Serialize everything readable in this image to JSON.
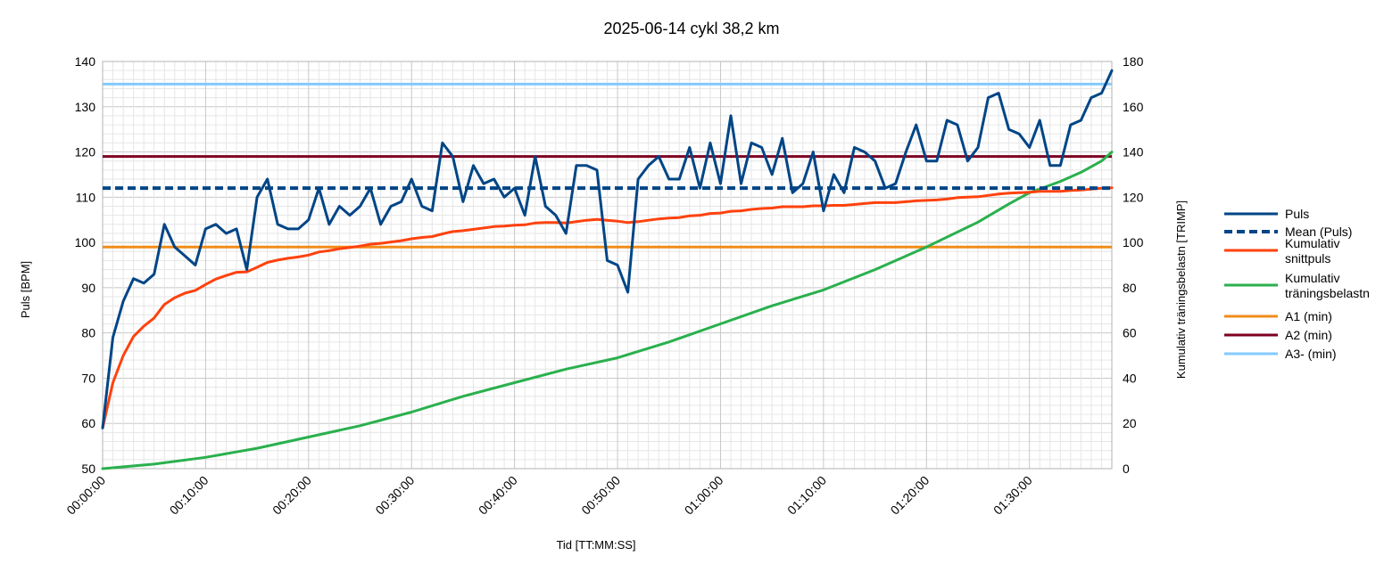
{
  "chart_data": {
    "type": "line",
    "title": "2025-06-14 cykl 38,2 km",
    "xlabel": "Tid [TT:MM:SS]",
    "ylabel": "Puls [BPM]",
    "y2label": "Kumulativ träningsbelastn [TRIMP]",
    "xlim_minutes": [
      0,
      98
    ],
    "ylim": [
      50,
      140
    ],
    "y2lim": [
      0,
      180
    ],
    "x_ticks": [
      "00:00:00",
      "00:10:00",
      "00:20:00",
      "00:30:00",
      "00:40:00",
      "00:50:00",
      "01:00:00",
      "01:10:00",
      "01:20:00",
      "01:30:00"
    ],
    "y_ticks": [
      "50",
      "60",
      "70",
      "80",
      "90",
      "100",
      "110",
      "120",
      "130",
      "140"
    ],
    "y2_ticks": [
      "0",
      "20",
      "40",
      "60",
      "80",
      "100",
      "120",
      "140",
      "160",
      "180"
    ],
    "grid": true,
    "legend_position": "right",
    "colors": {
      "puls": "#004586",
      "mean": "#004586",
      "kumulativ_snittpuls": "#ff420e",
      "kumulativ_traning": "#2ab04d",
      "a1": "#f08c1a",
      "a2": "#7e0021",
      "a3": "#83caff",
      "grid_major": "#c8c8c8",
      "grid_minor": "#e6e6e6"
    },
    "series": [
      {
        "name": "Puls",
        "axis": "left",
        "x": [
          0,
          1,
          2,
          3,
          4,
          5,
          6,
          7,
          8,
          9,
          10,
          11,
          12,
          13,
          14,
          15,
          16,
          17,
          18,
          19,
          20,
          21,
          22,
          23,
          24,
          25,
          26,
          27,
          28,
          29,
          30,
          31,
          32,
          33,
          34,
          35,
          36,
          37,
          38,
          39,
          40,
          41,
          42,
          43,
          44,
          45,
          46,
          47,
          48,
          49,
          50,
          51,
          52,
          53,
          54,
          55,
          56,
          57,
          58,
          59,
          60,
          61,
          62,
          63,
          64,
          65,
          66,
          67,
          68,
          69,
          70,
          71,
          72,
          73,
          74,
          75,
          76,
          77,
          78,
          79,
          80,
          81,
          82,
          83,
          84,
          85,
          86,
          87,
          88,
          89,
          90,
          91,
          92,
          93,
          94,
          95,
          96,
          97,
          98
        ],
        "values": [
          59,
          79,
          87,
          92,
          91,
          93,
          104,
          99,
          97,
          95,
          103,
          104,
          102,
          103,
          94,
          110,
          114,
          104,
          103,
          103,
          105,
          112,
          104,
          108,
          106,
          108,
          112,
          104,
          108,
          109,
          114,
          108,
          107,
          122,
          119,
          109,
          117,
          113,
          114,
          110,
          112,
          106,
          119,
          108,
          106,
          102,
          117,
          117,
          116,
          96,
          95,
          89,
          114,
          117,
          119,
          114,
          114,
          121,
          112,
          122,
          113,
          128,
          113,
          122,
          121,
          115,
          123,
          111,
          113,
          120,
          107,
          115,
          111,
          121,
          120,
          118,
          112,
          113,
          120,
          126,
          118,
          118,
          127,
          126,
          118,
          121,
          132,
          133,
          125,
          124,
          121,
          127,
          117,
          117,
          126,
          127,
          132,
          133,
          138
        ]
      },
      {
        "name": "Mean (Puls)",
        "axis": "left",
        "style": "dashed",
        "constant": 112
      },
      {
        "name": "Kumulativ snittpuls",
        "axis": "left",
        "x": [
          0,
          1,
          2,
          3,
          4,
          5,
          6,
          7,
          8,
          9,
          10,
          11,
          12,
          13,
          14,
          15,
          16,
          17,
          18,
          19,
          20,
          21,
          22,
          23,
          24,
          25,
          26,
          27,
          28,
          29,
          30,
          31,
          32,
          33,
          34,
          35,
          36,
          37,
          38,
          39,
          40,
          41,
          42,
          43,
          44,
          45,
          46,
          47,
          48,
          49,
          50,
          51,
          52,
          53,
          54,
          55,
          56,
          57,
          58,
          59,
          60,
          61,
          62,
          63,
          64,
          65,
          66,
          67,
          68,
          69,
          70,
          71,
          72,
          73,
          74,
          75,
          76,
          77,
          78,
          79,
          80,
          81,
          82,
          83,
          84,
          85,
          86,
          87,
          88,
          89,
          90,
          91,
          92,
          93,
          94,
          95,
          96,
          97,
          98
        ],
        "values": [
          59,
          69,
          75,
          79.2,
          81.5,
          83.3,
          86.3,
          87.8,
          88.8,
          89.4,
          90.7,
          91.9,
          92.7,
          93.4,
          93.5,
          94.5,
          95.6,
          96.1,
          96.5,
          96.8,
          97.2,
          97.9,
          98.2,
          98.6,
          98.9,
          99.2,
          99.6,
          99.8,
          100.1,
          100.4,
          100.8,
          101.1,
          101.3,
          101.9,
          102.4,
          102.6,
          102.9,
          103.2,
          103.5,
          103.6,
          103.8,
          103.9,
          104.3,
          104.4,
          104.4,
          104.3,
          104.6,
          104.9,
          105.1,
          104.9,
          104.7,
          104.4,
          104.6,
          104.9,
          105.2,
          105.4,
          105.5,
          105.9,
          106,
          106.4,
          106.5,
          106.9,
          107,
          107.3,
          107.5,
          107.6,
          107.9,
          107.9,
          107.9,
          108.1,
          108.1,
          108.2,
          108.2,
          108.4,
          108.6,
          108.8,
          108.8,
          108.8,
          109,
          109.2,
          109.3,
          109.4,
          109.6,
          109.9,
          110,
          110.1,
          110.4,
          110.7,
          110.9,
          111,
          111.1,
          111.3,
          111.3,
          111.3,
          111.5,
          111.6,
          111.8,
          112,
          112.1
        ]
      },
      {
        "name": "Kumulativ träningsbelastn",
        "axis": "right",
        "x": [
          0,
          5,
          10,
          15,
          20,
          25,
          30,
          35,
          40,
          45,
          50,
          55,
          60,
          65,
          70,
          75,
          80,
          85,
          88,
          90,
          93,
          95,
          97,
          98
        ],
        "values": [
          0,
          2,
          5,
          9,
          14,
          19,
          25,
          32,
          38,
          44,
          49,
          56,
          64,
          72,
          79,
          88,
          98,
          109,
          117,
          122,
          127,
          131,
          136,
          140
        ]
      },
      {
        "name": "A1 (min)",
        "axis": "left",
        "constant": 99
      },
      {
        "name": "A2 (min)",
        "axis": "left",
        "constant": 119
      },
      {
        "name": "A3- (min)",
        "axis": "left",
        "constant": 135
      }
    ],
    "legend": {
      "entries": [
        {
          "lines": [
            "Puls"
          ]
        },
        {
          "lines": [
            "Mean (Puls)"
          ]
        },
        {
          "lines": [
            "Kumulativ",
            "snittpuls"
          ]
        },
        {
          "lines": [
            "Kumulativ",
            "träningsbelastn"
          ]
        },
        {
          "lines": [
            "A1 (min)"
          ]
        },
        {
          "lines": [
            "A2 (min)"
          ]
        },
        {
          "lines": [
            "A3- (min)"
          ]
        }
      ]
    }
  }
}
